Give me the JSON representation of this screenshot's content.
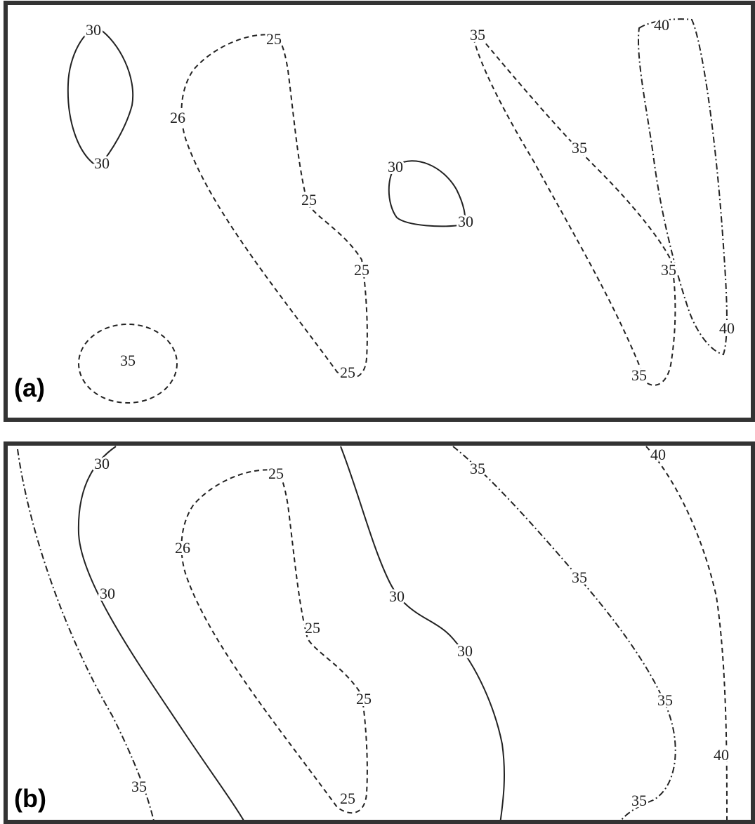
{
  "panels": [
    {
      "label": "(a)",
      "contour_labels": [
        30,
        30,
        25,
        26,
        25,
        25,
        25,
        35,
        30,
        30,
        35,
        35,
        35,
        35,
        40,
        40
      ]
    },
    {
      "label": "(b)",
      "contour_labels": [
        35,
        30,
        30,
        25,
        26,
        25,
        25,
        25,
        30,
        30,
        35,
        35,
        35,
        35,
        40,
        40
      ]
    }
  ]
}
